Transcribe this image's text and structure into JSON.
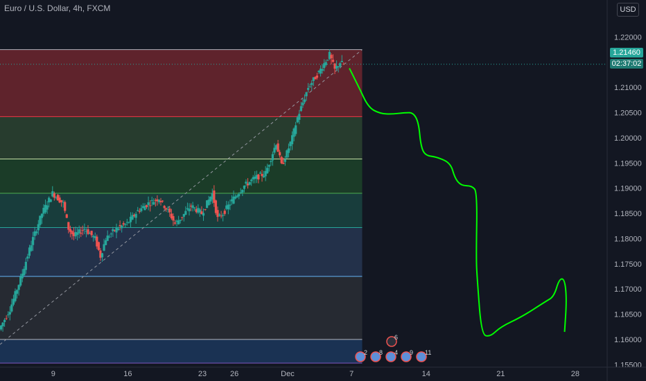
{
  "header": {
    "title": "Euro / U.S. Dollar, 4h, FXCM",
    "currency_button": "USD"
  },
  "price_tag": {
    "last_price": "1.21460",
    "countdown": "02:37:02",
    "color": "#26a69a"
  },
  "colors": {
    "background": "#131722",
    "bull": "#26a69a",
    "bear": "#ef5350",
    "drawing": "#00ff00",
    "axis_text": "#b2b5be"
  },
  "events": [
    {
      "count": "6",
      "icon": "earth-icon"
    },
    {
      "count": "2",
      "icon": "us-flag-icon"
    },
    {
      "count": "8",
      "icon": "earth-icon"
    },
    {
      "count": "4",
      "icon": "us-flag-icon"
    },
    {
      "count": "9",
      "icon": "us-flag-icon"
    },
    {
      "count": "11",
      "icon": "us-flag-icon"
    }
  ],
  "chart_data": {
    "type": "candlestick",
    "symbol": "Euro / U.S. Dollar",
    "interval": "4h",
    "source": "FXCM",
    "ylim": [
      1.1545,
      1.2235
    ],
    "y_ticks": [
      "1.22000",
      "1.21500",
      "1.21000",
      "1.20500",
      "1.20000",
      "1.19500",
      "1.19000",
      "1.18500",
      "1.18000",
      "1.17500",
      "1.17000",
      "1.16500",
      "1.16000",
      "1.15500"
    ],
    "x_ticks": [
      "9",
      "16",
      "23",
      "26",
      "Dec",
      "7",
      "14",
      "21",
      "28"
    ],
    "x_tick_days": [
      9,
      16,
      23,
      26,
      31,
      37,
      44,
      51,
      58
    ],
    "x_range_days": [
      4,
      61
    ],
    "chart_end_day": 38,
    "fib_levels": [
      {
        "value": 1.2175,
        "color": "#b2b5be",
        "fill": "#7a2830"
      },
      {
        "value": 1.2042,
        "color": "#f23645",
        "fill": "#2f4a33"
      },
      {
        "value": 1.1958,
        "color": "#c5e1a5",
        "fill": "#1f4a2b"
      },
      {
        "value": 1.189,
        "color": "#4caf50",
        "fill": "#1b4b45"
      },
      {
        "value": 1.1822,
        "color": "#26a69a",
        "fill": "#2a3b58"
      },
      {
        "value": 1.1725,
        "color": "#64b5f6",
        "fill": "#2d3138"
      },
      {
        "value": 1.16,
        "color": "#b2b5be",
        "fill": "#1e3c64"
      },
      {
        "value": 1.1553,
        "color": "#7e57c2",
        "fill": "#1e3c64"
      }
    ],
    "trendline": {
      "start": [
        4.0,
        1.159
      ],
      "end": [
        38.0,
        1.2175
      ]
    },
    "price_path": [
      [
        4.0,
        1.162
      ],
      [
        5.0,
        1.166
      ],
      [
        6.0,
        1.172
      ],
      [
        7.0,
        1.179
      ],
      [
        8.0,
        1.185
      ],
      [
        9.0,
        1.189
      ],
      [
        10.0,
        1.187
      ],
      [
        10.5,
        1.182
      ],
      [
        11.0,
        1.1805
      ],
      [
        12.0,
        1.182
      ],
      [
        13.0,
        1.18
      ],
      [
        13.5,
        1.1765
      ],
      [
        14.0,
        1.18
      ],
      [
        15.0,
        1.182
      ],
      [
        16.0,
        1.183
      ],
      [
        17.0,
        1.1855
      ],
      [
        18.0,
        1.187
      ],
      [
        19.0,
        1.188
      ],
      [
        20.0,
        1.185
      ],
      [
        20.5,
        1.183
      ],
      [
        21.0,
        1.184
      ],
      [
        22.0,
        1.1865
      ],
      [
        23.0,
        1.185
      ],
      [
        24.0,
        1.189
      ],
      [
        24.5,
        1.184
      ],
      [
        25.0,
        1.185
      ],
      [
        26.0,
        1.188
      ],
      [
        27.0,
        1.1905
      ],
      [
        28.0,
        1.192
      ],
      [
        29.0,
        1.193
      ],
      [
        30.0,
        1.199
      ],
      [
        30.5,
        1.1945
      ],
      [
        31.0,
        1.197
      ],
      [
        31.5,
        1.2
      ],
      [
        32.0,
        1.204
      ],
      [
        33.0,
        1.21
      ],
      [
        34.0,
        1.213
      ],
      [
        35.0,
        1.2165
      ],
      [
        35.5,
        1.2135
      ],
      [
        36.0,
        1.215
      ],
      [
        36.3,
        1.2146
      ]
    ],
    "drawn_projection": [
      [
        36.8,
        1.2138
      ],
      [
        37.7,
        1.21
      ],
      [
        38.6,
        1.206
      ],
      [
        39.7,
        1.2048
      ],
      [
        40.8,
        1.2047
      ],
      [
        42.0,
        1.205
      ],
      [
        42.8,
        1.205
      ],
      [
        43.3,
        1.203
      ],
      [
        43.5,
        1.1985
      ],
      [
        43.9,
        1.1965
      ],
      [
        45.0,
        1.1962
      ],
      [
        46.3,
        1.195
      ],
      [
        46.7,
        1.192
      ],
      [
        47.3,
        1.1905
      ],
      [
        48.3,
        1.1905
      ],
      [
        48.8,
        1.1892
      ],
      [
        48.7,
        1.176
      ],
      [
        48.8,
        1.172
      ],
      [
        49.2,
        1.161
      ],
      [
        50.0,
        1.1605
      ],
      [
        51.0,
        1.1625
      ],
      [
        53.0,
        1.1645
      ],
      [
        55.2,
        1.1675
      ],
      [
        56.0,
        1.1685
      ],
      [
        56.5,
        1.172
      ],
      [
        57.0,
        1.172
      ],
      [
        57.2,
        1.168
      ],
      [
        57.0,
        1.1615
      ]
    ]
  }
}
